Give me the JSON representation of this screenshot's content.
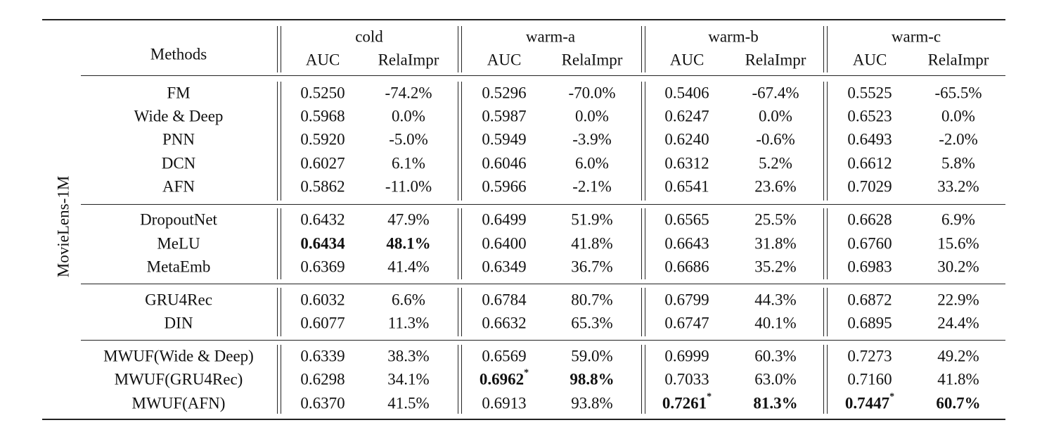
{
  "dataset": "MovieLens-1M",
  "header": {
    "methods": "Methods",
    "groups": [
      "cold",
      "warm-a",
      "warm-b",
      "warm-c"
    ],
    "metrics": [
      "AUC",
      "RelaImpr"
    ]
  },
  "groups": [
    {
      "rows": [
        {
          "method": "FM",
          "cells": [
            {
              "v": "0.5250"
            },
            {
              "v": "-74.2%"
            },
            {
              "v": "0.5296"
            },
            {
              "v": "-70.0%"
            },
            {
              "v": "0.5406"
            },
            {
              "v": "-67.4%"
            },
            {
              "v": "0.5525"
            },
            {
              "v": "-65.5%"
            }
          ]
        },
        {
          "method": "Wide & Deep",
          "cells": [
            {
              "v": "0.5968"
            },
            {
              "v": "0.0%"
            },
            {
              "v": "0.5987"
            },
            {
              "v": "0.0%"
            },
            {
              "v": "0.6247"
            },
            {
              "v": "0.0%"
            },
            {
              "v": "0.6523"
            },
            {
              "v": "0.0%"
            }
          ]
        },
        {
          "method": "PNN",
          "cells": [
            {
              "v": "0.5920"
            },
            {
              "v": "-5.0%"
            },
            {
              "v": "0.5949"
            },
            {
              "v": "-3.9%"
            },
            {
              "v": "0.6240"
            },
            {
              "v": "-0.6%"
            },
            {
              "v": "0.6493"
            },
            {
              "v": "-2.0%"
            }
          ]
        },
        {
          "method": "DCN",
          "cells": [
            {
              "v": "0.6027"
            },
            {
              "v": "6.1%"
            },
            {
              "v": "0.6046"
            },
            {
              "v": "6.0%"
            },
            {
              "v": "0.6312"
            },
            {
              "v": "5.2%"
            },
            {
              "v": "0.6612"
            },
            {
              "v": "5.8%"
            }
          ]
        },
        {
          "method": "AFN",
          "cells": [
            {
              "v": "0.5862"
            },
            {
              "v": "-11.0%"
            },
            {
              "v": "0.5966"
            },
            {
              "v": "-2.1%"
            },
            {
              "v": "0.6541"
            },
            {
              "v": "23.6%"
            },
            {
              "v": "0.7029"
            },
            {
              "v": "33.2%"
            }
          ]
        }
      ]
    },
    {
      "rows": [
        {
          "method": "DropoutNet",
          "cells": [
            {
              "v": "0.6432"
            },
            {
              "v": "47.9%"
            },
            {
              "v": "0.6499"
            },
            {
              "v": "51.9%"
            },
            {
              "v": "0.6565"
            },
            {
              "v": "25.5%"
            },
            {
              "v": "0.6628"
            },
            {
              "v": "6.9%"
            }
          ]
        },
        {
          "method": "MeLU",
          "cells": [
            {
              "v": "0.6434",
              "b": true
            },
            {
              "v": "48.1%",
              "b": true
            },
            {
              "v": "0.6400"
            },
            {
              "v": "41.8%"
            },
            {
              "v": "0.6643"
            },
            {
              "v": "31.8%"
            },
            {
              "v": "0.6760"
            },
            {
              "v": "15.6%"
            }
          ]
        },
        {
          "method": "MetaEmb",
          "cells": [
            {
              "v": "0.6369"
            },
            {
              "v": "41.4%"
            },
            {
              "v": "0.6349"
            },
            {
              "v": "36.7%"
            },
            {
              "v": "0.6686"
            },
            {
              "v": "35.2%"
            },
            {
              "v": "0.6983"
            },
            {
              "v": "30.2%"
            }
          ]
        }
      ]
    },
    {
      "rows": [
        {
          "method": "GRU4Rec",
          "cells": [
            {
              "v": "0.6032"
            },
            {
              "v": "6.6%"
            },
            {
              "v": "0.6784"
            },
            {
              "v": "80.7%"
            },
            {
              "v": "0.6799"
            },
            {
              "v": "44.3%"
            },
            {
              "v": "0.6872"
            },
            {
              "v": "22.9%"
            }
          ]
        },
        {
          "method": "DIN",
          "cells": [
            {
              "v": "0.6077"
            },
            {
              "v": "11.3%"
            },
            {
              "v": "0.6632"
            },
            {
              "v": "65.3%"
            },
            {
              "v": "0.6747"
            },
            {
              "v": "40.1%"
            },
            {
              "v": "0.6895"
            },
            {
              "v": "24.4%"
            }
          ]
        }
      ]
    },
    {
      "rows": [
        {
          "method": "MWUF(Wide & Deep)",
          "cells": [
            {
              "v": "0.6339"
            },
            {
              "v": "38.3%"
            },
            {
              "v": "0.6569"
            },
            {
              "v": "59.0%"
            },
            {
              "v": "0.6999"
            },
            {
              "v": "60.3%"
            },
            {
              "v": "0.7273"
            },
            {
              "v": "49.2%"
            }
          ]
        },
        {
          "method": "MWUF(GRU4Rec)",
          "cells": [
            {
              "v": "0.6298"
            },
            {
              "v": "34.1%"
            },
            {
              "v": "0.6962",
              "b": true,
              "sup": "*"
            },
            {
              "v": "98.8%",
              "b": true
            },
            {
              "v": "0.7033"
            },
            {
              "v": "63.0%"
            },
            {
              "v": "0.7160"
            },
            {
              "v": "41.8%"
            }
          ]
        },
        {
          "method": "MWUF(AFN)",
          "cells": [
            {
              "v": "0.6370"
            },
            {
              "v": "41.5%"
            },
            {
              "v": "0.6913"
            },
            {
              "v": "93.8%"
            },
            {
              "v": "0.7261",
              "b": true,
              "sup": "*"
            },
            {
              "v": "81.3%",
              "b": true
            },
            {
              "v": "0.7447",
              "b": true,
              "sup": "*"
            },
            {
              "v": "60.7%",
              "b": true
            }
          ]
        }
      ]
    }
  ]
}
